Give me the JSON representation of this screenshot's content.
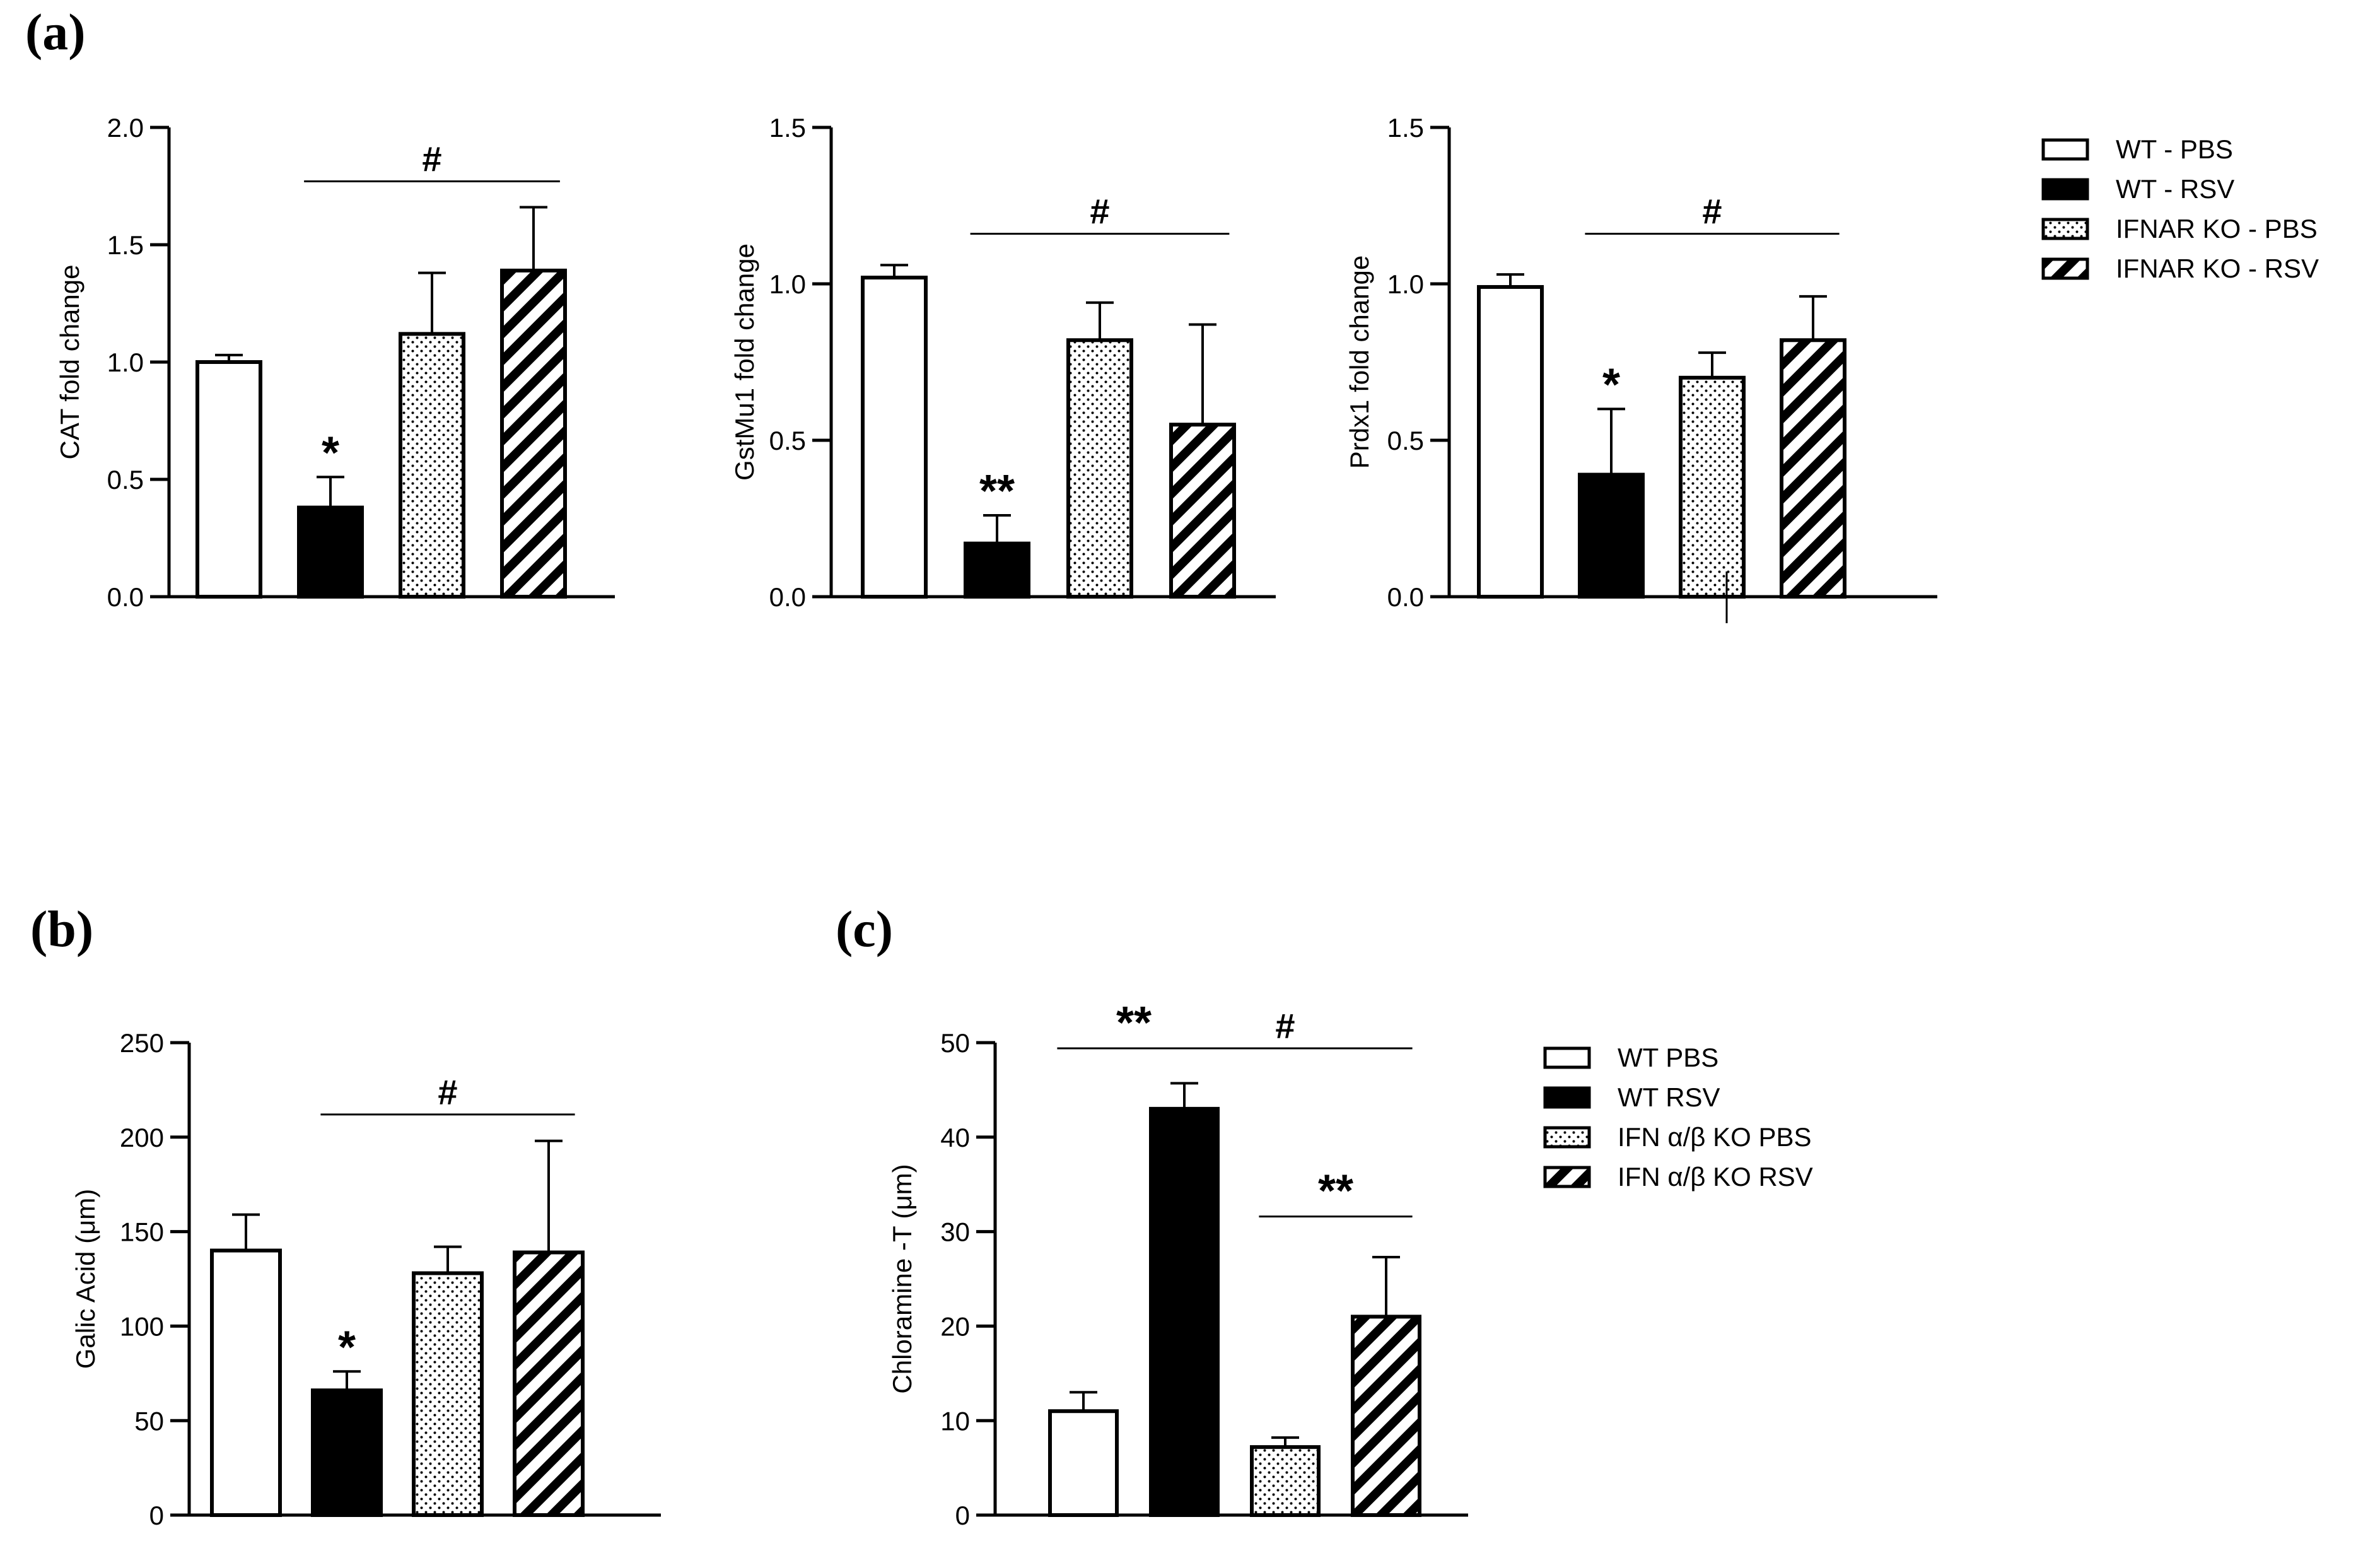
{
  "panel_labels": {
    "a": "(a)",
    "b": "(b)",
    "c": "(c)"
  },
  "colors": {
    "ink": "#000000",
    "paper": "#ffffff"
  },
  "legends": {
    "a": [
      {
        "label": "WT - PBS",
        "fill": "white"
      },
      {
        "label": "WT - RSV",
        "fill": "black"
      },
      {
        "label": "IFNAR KO - PBS",
        "fill": "dots"
      },
      {
        "label": "IFNAR KO - RSV",
        "fill": "hatch"
      }
    ],
    "c": [
      {
        "label": "WT PBS",
        "fill": "white"
      },
      {
        "label": "WT RSV",
        "fill": "black"
      },
      {
        "label": "IFN α/β KO PBS",
        "fill": "dots"
      },
      {
        "label": "IFN α/β KO RSV",
        "fill": "hatch"
      }
    ]
  },
  "chart_data": [
    {
      "id": "cat",
      "panel": "a",
      "type": "bar",
      "ylabel": "CAT fold change",
      "categories": [
        "WT - PBS",
        "WT - RSV",
        "IFNAR KO - PBS",
        "IFNAR KO - RSV"
      ],
      "values": [
        1.0,
        0.38,
        1.12,
        1.39
      ],
      "errors": [
        0.03,
        0.13,
        0.26,
        0.27
      ],
      "fills": [
        "white",
        "black",
        "dots",
        "hatch"
      ],
      "ylim": [
        0,
        2.0
      ],
      "yticks": [
        0.0,
        0.5,
        1.0,
        1.5,
        2.0
      ],
      "ytick_labels": [
        "0.0",
        "0.5",
        "1.0",
        "1.5",
        "2.0"
      ],
      "annotations": [
        {
          "bar": 1,
          "text": "*"
        }
      ],
      "brackets": [
        {
          "from": 1,
          "to": 3,
          "y": 1.77,
          "text": "#"
        }
      ]
    },
    {
      "id": "gstmu1",
      "panel": "a",
      "type": "bar",
      "ylabel": "GstMu1 fold change",
      "categories": [
        "WT - PBS",
        "WT - RSV",
        "IFNAR KO - PBS",
        "IFNAR KO - RSV"
      ],
      "values": [
        1.02,
        0.17,
        0.82,
        0.55
      ],
      "errors": [
        0.04,
        0.09,
        0.12,
        0.32
      ],
      "fills": [
        "white",
        "black",
        "dots",
        "hatch"
      ],
      "ylim": [
        0,
        1.5
      ],
      "yticks": [
        0.0,
        0.5,
        1.0,
        1.5
      ],
      "ytick_labels": [
        "0.0",
        "0.5",
        "1.0",
        "1.5"
      ],
      "annotations": [
        {
          "bar": 1,
          "text": "**"
        }
      ],
      "brackets": [
        {
          "from": 1,
          "to": 3,
          "y": 1.16,
          "text": "#"
        }
      ]
    },
    {
      "id": "prdx1",
      "panel": "a",
      "type": "bar",
      "ylabel": "Prdx1 fold change",
      "categories": [
        "WT - PBS",
        "WT - RSV",
        "IFNAR KO - PBS",
        "IFNAR KO - RSV"
      ],
      "values": [
        0.99,
        0.39,
        0.7,
        0.82
      ],
      "errors": [
        0.04,
        0.21,
        0.08,
        0.14
      ],
      "fills": [
        "white",
        "black",
        "dots",
        "hatch"
      ],
      "ylim": [
        0,
        1.5
      ],
      "yticks": [
        0.0,
        0.5,
        1.0,
        1.5
      ],
      "ytick_labels": [
        "0.0",
        "0.5",
        "1.0",
        "1.5"
      ],
      "annotations": [
        {
          "bar": 1,
          "text": "*"
        }
      ],
      "brackets": [
        {
          "from": 1,
          "to": 3,
          "y": 1.16,
          "text": "#"
        }
      ]
    },
    {
      "id": "galic",
      "panel": "b",
      "type": "bar",
      "ylabel": "Galic Acid (μm)",
      "categories": [
        "WT PBS",
        "WT RSV",
        "IFN α/β KO PBS",
        "IFN α/β KO RSV"
      ],
      "values": [
        140,
        66,
        128,
        139
      ],
      "errors": [
        19,
        10,
        14,
        59
      ],
      "fills": [
        "white",
        "black",
        "dots",
        "hatch"
      ],
      "ylim": [
        0,
        250
      ],
      "yticks": [
        0,
        50,
        100,
        150,
        200,
        250
      ],
      "ytick_labels": [
        "0",
        "50",
        "100",
        "150",
        "200",
        "250"
      ],
      "annotations": [
        {
          "bar": 1,
          "text": "*"
        }
      ],
      "brackets": [
        {
          "from": 1,
          "to": 3,
          "y": 212,
          "text": "#"
        }
      ]
    },
    {
      "id": "chloramine",
      "panel": "c",
      "type": "bar",
      "ylabel": "Chloramine -T (μm)",
      "categories": [
        "WT PBS",
        "WT RSV",
        "IFN α/β KO PBS",
        "IFN α/β KO RSV"
      ],
      "values": [
        11,
        43,
        7.2,
        21
      ],
      "errors": [
        2,
        2.7,
        1,
        6.3
      ],
      "fills": [
        "white",
        "black",
        "dots",
        "hatch"
      ],
      "ylim": [
        0,
        50
      ],
      "yticks": [
        0,
        10,
        20,
        30,
        40,
        50
      ],
      "ytick_labels": [
        "0",
        "10",
        "20",
        "30",
        "40",
        "50"
      ],
      "annotations": [],
      "brackets": [
        {
          "from": 0,
          "to": 1,
          "y": 49.4,
          "text": "**"
        },
        {
          "from": 1,
          "to": 3,
          "y": 49.4,
          "text": "#"
        },
        {
          "from": 2,
          "to": 3,
          "y": 31.6,
          "text": "**"
        }
      ]
    }
  ]
}
